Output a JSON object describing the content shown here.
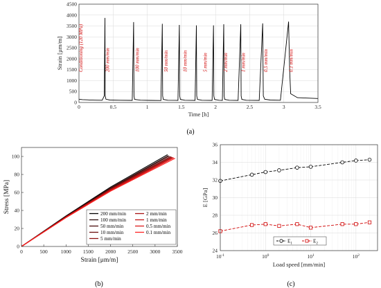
{
  "chart_data": [
    {
      "id": "a",
      "type": "line",
      "caption": "(a)",
      "xlabel": "Time [h]",
      "ylabel": "Strain [µm/m]",
      "xlim": [
        0,
        3.5
      ],
      "ylim": [
        0,
        4500
      ],
      "xticks": [
        "0",
        "0.5",
        "1",
        "1.5",
        "2",
        "2.5",
        "3",
        "3.5"
      ],
      "xtick_values": [
        0,
        0.5,
        1,
        1.5,
        2,
        2.5,
        3,
        3.5
      ],
      "yticks": [
        "0",
        "500",
        "1000",
        "1500",
        "2000",
        "2500",
        "3000",
        "3500",
        "4000",
        "4500"
      ],
      "ytick_values": [
        0,
        500,
        1000,
        1500,
        2000,
        2500,
        3000,
        3500,
        4000,
        4500
      ],
      "grid": true,
      "line_color": "#000000",
      "annotation_color": "#d00000",
      "annotations": [
        {
          "text": "Conditioning (120 MPa)",
          "x": 0.05
        },
        {
          "text": "200 mm/min",
          "x": 0.44
        },
        {
          "text": "100 mm/min",
          "x": 0.88
        },
        {
          "text": "50 mm/min",
          "x": 1.3
        },
        {
          "text": "10 mm/min",
          "x": 1.58
        },
        {
          "text": "5 mm/min",
          "x": 1.87
        },
        {
          "text": "2 mm/min",
          "x": 2.17
        },
        {
          "text": "1 mm/min",
          "x": 2.43
        },
        {
          "text": "0.5 mm/min",
          "x": 2.76
        },
        {
          "text": "0.1 mm/min",
          "x": 3.13
        }
      ],
      "series": [
        {
          "x": [
            0,
            0.05,
            0.15,
            0.25,
            0.34,
            0.37,
            0.38,
            0.385,
            0.395,
            0.45,
            0.6,
            0.78,
            0.8,
            0.805,
            0.815,
            0.9,
            1.05,
            1.2,
            1.22,
            1.225,
            1.235,
            1.3,
            1.45,
            1.47,
            1.475,
            1.485,
            1.55,
            1.7,
            1.72,
            1.725,
            1.735,
            1.8,
            1.95,
            1.97,
            1.975,
            1.985,
            2.05,
            2.1,
            2.12,
            2.125,
            2.135,
            2.2,
            2.33,
            2.37,
            2.375,
            2.385,
            2.45,
            2.64,
            2.69,
            2.7,
            2.72,
            2.8,
            2.95,
            3.07,
            3.085,
            3.1,
            3.2,
            3.5
          ],
          "y": [
            150,
            130,
            115,
            105,
            100,
            300,
            3870,
            300,
            150,
            110,
            100,
            95,
            3680,
            300,
            140,
            105,
            95,
            90,
            3600,
            300,
            140,
            100,
            95,
            3550,
            300,
            140,
            100,
            95,
            3530,
            300,
            140,
            100,
            95,
            3530,
            300,
            140,
            100,
            95,
            3580,
            300,
            140,
            100,
            95,
            3580,
            300,
            140,
            100,
            95,
            3620,
            300,
            150,
            110,
            100,
            3700,
            1500,
            400,
            220,
            180
          ]
        }
      ]
    },
    {
      "id": "b",
      "type": "line",
      "caption": "(b)",
      "xlabel": "Strain [μm/m]",
      "ylabel": "Stress [MPa]",
      "xlim": [
        0,
        3500
      ],
      "ylim": [
        0,
        110
      ],
      "xticks": [
        "0",
        "500",
        "1000",
        "1500",
        "2000",
        "2500",
        "3000",
        "3500"
      ],
      "xtick_values": [
        0,
        500,
        1000,
        1500,
        2000,
        2500,
        3000,
        3500
      ],
      "yticks": [
        "0",
        "20",
        "40",
        "60",
        "80",
        "100"
      ],
      "ytick_values": [
        0,
        20,
        40,
        60,
        80,
        100
      ],
      "grid": false,
      "legend_position": "bottom-right",
      "series": [
        {
          "name": "200 mm/min",
          "color": "#000000",
          "x": [
            0,
            1000,
            2000,
            3280
          ],
          "y": [
            0,
            34,
            66,
            102
          ]
        },
        {
          "name": "100 mm/min",
          "color": "#2a0a0a",
          "x": [
            0,
            1000,
            2000,
            3300
          ],
          "y": [
            0,
            33.5,
            65,
            101
          ]
        },
        {
          "name": "50 mm/min",
          "color": "#4a0b0b",
          "x": [
            0,
            1000,
            2000,
            3320
          ],
          "y": [
            0,
            33.2,
            64.5,
            100.5
          ]
        },
        {
          "name": "10 mm/min",
          "color": "#6b0d0d",
          "x": [
            0,
            1000,
            2000,
            3350
          ],
          "y": [
            0,
            33,
            64,
            100
          ]
        },
        {
          "name": "5 mm/min",
          "color": "#8c1010",
          "x": [
            0,
            1000,
            2000,
            3370
          ],
          "y": [
            0,
            32.8,
            63.5,
            99.5
          ]
        },
        {
          "name": "2 mm/min",
          "color": "#a81313",
          "x": [
            0,
            1000,
            2000,
            3380
          ],
          "y": [
            0,
            32.6,
            63,
            99.2
          ]
        },
        {
          "name": "1 mm/min",
          "color": "#c41616",
          "x": [
            0,
            1000,
            2000,
            3400
          ],
          "y": [
            0,
            32.4,
            62.5,
            99
          ]
        },
        {
          "name": "0.5 mm/min",
          "color": "#dc1a1a",
          "x": [
            0,
            1000,
            2000,
            3420
          ],
          "y": [
            0,
            32.2,
            62,
            98.5
          ]
        },
        {
          "name": "0.1 mm/min",
          "color": "#ff2020",
          "x": [
            0,
            1000,
            2000,
            3450
          ],
          "y": [
            0,
            32,
            61.5,
            98
          ]
        }
      ]
    },
    {
      "id": "c",
      "type": "line",
      "caption": "(c)",
      "xlabel": "Load speed [mm/min]",
      "ylabel": "E [GPa]",
      "xscale": "log",
      "xlim": [
        0.1,
        300
      ],
      "ylim": [
        24,
        36
      ],
      "xticks": [
        "10",
        "10",
        "10",
        "10"
      ],
      "xtick_exponents": [
        "-1",
        "0",
        "1",
        "2"
      ],
      "xtick_values": [
        0.1,
        1,
        10,
        100
      ],
      "yticks": [
        "24",
        "26",
        "28",
        "30",
        "32",
        "34",
        "36"
      ],
      "ytick_values": [
        24,
        26,
        28,
        30,
        32,
        34,
        36
      ],
      "grid": true,
      "legend_position": "bottom-center",
      "series": [
        {
          "name": "E",
          "subscript": "1",
          "color": "#000000",
          "marker": "circle",
          "dash": "4,2",
          "x": [
            0.1,
            0.5,
            1,
            2,
            5,
            10,
            50,
            100,
            200
          ],
          "y": [
            31.9,
            32.6,
            32.9,
            33.1,
            33.4,
            33.5,
            34.0,
            34.2,
            34.3
          ]
        },
        {
          "name": "E",
          "subscript": "2",
          "color": "#d00000",
          "marker": "square",
          "dash": "4,2",
          "x": [
            0.1,
            0.5,
            1,
            2,
            5,
            10,
            50,
            100,
            200
          ],
          "y": [
            26.2,
            26.9,
            27.0,
            26.8,
            27.0,
            26.6,
            27.0,
            27.0,
            27.2
          ]
        }
      ]
    }
  ]
}
